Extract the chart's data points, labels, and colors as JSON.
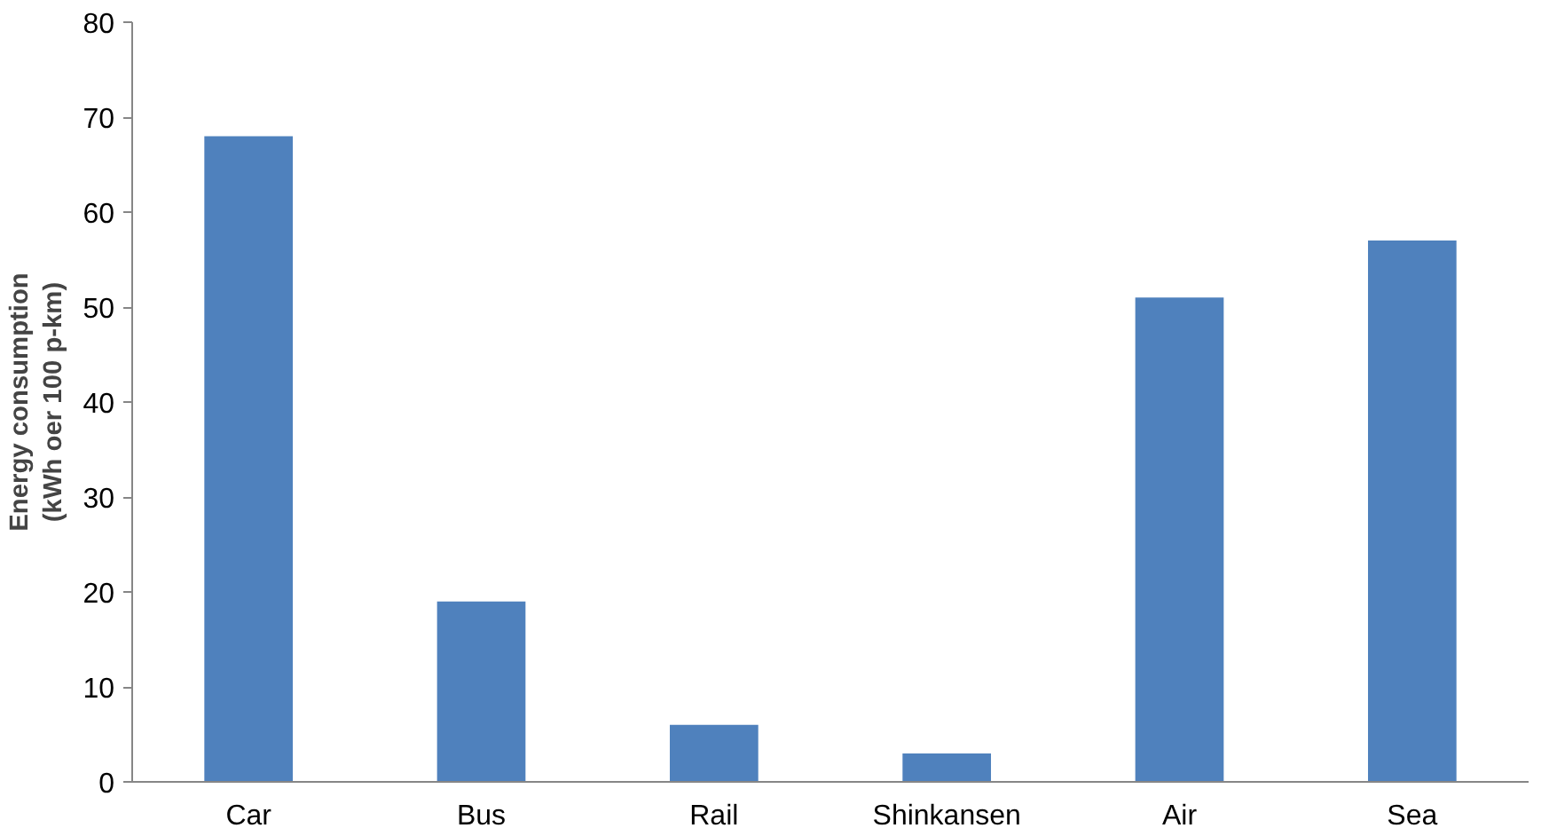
{
  "chart_data": {
    "type": "bar",
    "ylabel": "Energy consumption\n(kWh oer 100 p-km)",
    "categories": [
      "Car",
      "Bus",
      "Rail",
      "Shinkansen",
      "Air",
      "Sea"
    ],
    "values": [
      68,
      19,
      6,
      3,
      51,
      57
    ],
    "color": "#4f81bd",
    "ylim": [
      0,
      80
    ],
    "yticks": [
      0,
      10,
      20,
      30,
      40,
      50,
      60,
      70,
      80
    ],
    "grid": false,
    "legend": false
  }
}
